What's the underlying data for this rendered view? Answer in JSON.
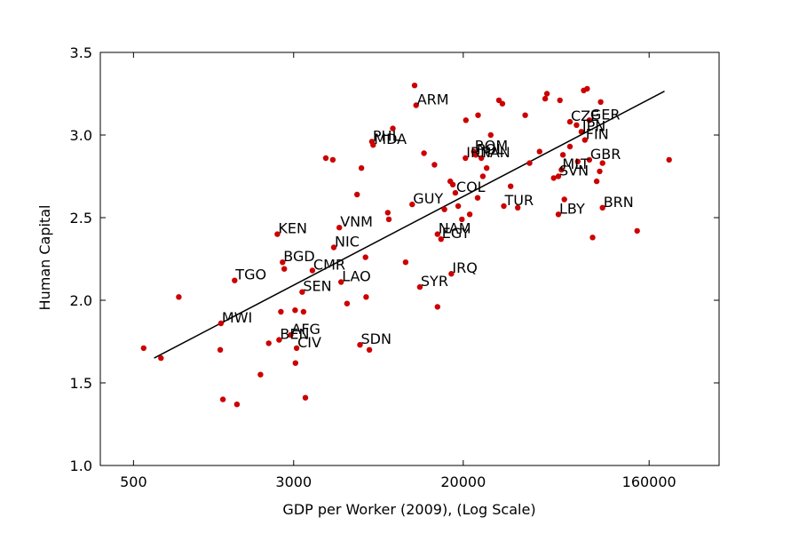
{
  "chart_data": {
    "type": "scatter",
    "title": "",
    "xlabel": "GDP per Worker (2009), (Log Scale)",
    "ylabel": "Human Capital",
    "x_scale": "log",
    "xlim": [
      345,
      350000
    ],
    "ylim": [
      1.0,
      3.5
    ],
    "xticks": [
      500,
      3000,
      20000,
      160000
    ],
    "xtick_labels": [
      "500",
      "3000",
      "20000",
      "160000"
    ],
    "yticks": [
      1.0,
      1.5,
      2.0,
      2.5,
      3.0,
      3.5
    ],
    "ytick_labels": [
      "1.0",
      "1.5",
      "2.0",
      "2.5",
      "3.0",
      "3.5"
    ],
    "grid": false,
    "marker_color": "#cc0000",
    "line_color": "#000000",
    "fit_line": {
      "x": [
        630,
        190000
      ],
      "y": [
        1.65,
        3.265
      ]
    },
    "labeled_points": [
      {
        "label": "ARM",
        "x": 11800,
        "y": 3.18
      },
      {
        "label": "PHL",
        "x": 7200,
        "y": 2.96
      },
      {
        "label": "MDA",
        "x": 7300,
        "y": 2.94
      },
      {
        "label": "CZE",
        "x": 66000,
        "y": 3.08
      },
      {
        "label": "GER",
        "x": 82000,
        "y": 3.09
      },
      {
        "label": "JPN",
        "x": 75000,
        "y": 3.02
      },
      {
        "label": "FIN",
        "x": 78000,
        "y": 2.97
      },
      {
        "label": "ROM",
        "x": 22500,
        "y": 2.9
      },
      {
        "label": "POL",
        "x": 23000,
        "y": 2.88
      },
      {
        "label": "IRN",
        "x": 20500,
        "y": 2.86
      },
      {
        "label": "PAN",
        "x": 24500,
        "y": 2.86
      },
      {
        "label": "GBR",
        "x": 82000,
        "y": 2.85
      },
      {
        "label": "MLT",
        "x": 60000,
        "y": 2.79
      },
      {
        "label": "SVN",
        "x": 58000,
        "y": 2.75
      },
      {
        "label": "GUY",
        "x": 11300,
        "y": 2.58
      },
      {
        "label": "COL",
        "x": 18300,
        "y": 2.65
      },
      {
        "label": "TUR",
        "x": 31500,
        "y": 2.57
      },
      {
        "label": "LBY",
        "x": 58000,
        "y": 2.52
      },
      {
        "label": "BRN",
        "x": 95000,
        "y": 2.56
      },
      {
        "label": "KEN",
        "x": 2500,
        "y": 2.4
      },
      {
        "label": "VNM",
        "x": 5000,
        "y": 2.44
      },
      {
        "label": "NIC",
        "x": 4700,
        "y": 2.32
      },
      {
        "label": "NAM",
        "x": 15000,
        "y": 2.4
      },
      {
        "label": "EGY",
        "x": 15600,
        "y": 2.37
      },
      {
        "label": "BGD",
        "x": 2650,
        "y": 2.23
      },
      {
        "label": "CMR",
        "x": 3700,
        "y": 2.18
      },
      {
        "label": "TGO",
        "x": 1550,
        "y": 2.12
      },
      {
        "label": "LAO",
        "x": 5100,
        "y": 2.11
      },
      {
        "label": "SEN",
        "x": 3300,
        "y": 2.05
      },
      {
        "label": "IRQ",
        "x": 17500,
        "y": 2.16
      },
      {
        "label": "SYR",
        "x": 12300,
        "y": 2.08
      },
      {
        "label": "MWI",
        "x": 1330,
        "y": 1.86
      },
      {
        "label": "AFG",
        "x": 2900,
        "y": 1.79
      },
      {
        "label": "BEN",
        "x": 2550,
        "y": 1.76
      },
      {
        "label": "CIV",
        "x": 3100,
        "y": 1.71
      },
      {
        "label": "SDN",
        "x": 6300,
        "y": 1.73
      }
    ],
    "other_points": [
      {
        "x": 560,
        "y": 1.71
      },
      {
        "x": 680,
        "y": 1.65
      },
      {
        "x": 830,
        "y": 2.02
      },
      {
        "x": 1320,
        "y": 1.7
      },
      {
        "x": 1360,
        "y": 1.4
      },
      {
        "x": 1590,
        "y": 1.37
      },
      {
        "x": 2070,
        "y": 1.55
      },
      {
        "x": 2270,
        "y": 1.74
      },
      {
        "x": 2600,
        "y": 1.93
      },
      {
        "x": 2700,
        "y": 2.19
      },
      {
        "x": 3050,
        "y": 1.94
      },
      {
        "x": 3060,
        "y": 1.62
      },
      {
        "x": 3350,
        "y": 1.93
      },
      {
        "x": 3420,
        "y": 1.41
      },
      {
        "x": 4300,
        "y": 2.86
      },
      {
        "x": 4650,
        "y": 2.85
      },
      {
        "x": 5450,
        "y": 1.98
      },
      {
        "x": 6100,
        "y": 2.64
      },
      {
        "x": 6400,
        "y": 2.8
      },
      {
        "x": 6700,
        "y": 2.26
      },
      {
        "x": 6750,
        "y": 2.02
      },
      {
        "x": 7000,
        "y": 1.7
      },
      {
        "x": 8600,
        "y": 2.53
      },
      {
        "x": 8700,
        "y": 2.49
      },
      {
        "x": 9100,
        "y": 3.04
      },
      {
        "x": 10500,
        "y": 2.23
      },
      {
        "x": 11600,
        "y": 3.3
      },
      {
        "x": 12900,
        "y": 2.89
      },
      {
        "x": 14500,
        "y": 2.82
      },
      {
        "x": 15000,
        "y": 1.96
      },
      {
        "x": 16200,
        "y": 2.55
      },
      {
        "x": 17300,
        "y": 2.72
      },
      {
        "x": 18900,
        "y": 2.57
      },
      {
        "x": 19700,
        "y": 2.49
      },
      {
        "x": 20600,
        "y": 3.09
      },
      {
        "x": 21500,
        "y": 2.52
      },
      {
        "x": 23600,
        "y": 3.12
      },
      {
        "x": 24900,
        "y": 2.75
      },
      {
        "x": 26000,
        "y": 2.8
      },
      {
        "x": 27200,
        "y": 3.0
      },
      {
        "x": 29800,
        "y": 3.21
      },
      {
        "x": 31000,
        "y": 3.19
      },
      {
        "x": 34000,
        "y": 2.69
      },
      {
        "x": 36800,
        "y": 2.56
      },
      {
        "x": 40000,
        "y": 3.12
      },
      {
        "x": 42000,
        "y": 2.83
      },
      {
        "x": 47000,
        "y": 2.9
      },
      {
        "x": 50000,
        "y": 3.22
      },
      {
        "x": 51000,
        "y": 3.25
      },
      {
        "x": 55000,
        "y": 2.74
      },
      {
        "x": 59000,
        "y": 3.21
      },
      {
        "x": 62000,
        "y": 2.61
      },
      {
        "x": 66000,
        "y": 2.93
      },
      {
        "x": 72000,
        "y": 2.84
      },
      {
        "x": 77000,
        "y": 3.27
      },
      {
        "x": 80000,
        "y": 3.28
      },
      {
        "x": 85000,
        "y": 2.38
      },
      {
        "x": 89000,
        "y": 2.72
      },
      {
        "x": 93000,
        "y": 3.2
      },
      {
        "x": 95000,
        "y": 2.83
      },
      {
        "x": 92000,
        "y": 2.78
      },
      {
        "x": 140000,
        "y": 2.42
      },
      {
        "x": 200000,
        "y": 2.85
      },
      {
        "x": 71000,
        "y": 3.06
      },
      {
        "x": 61000,
        "y": 2.88
      },
      {
        "x": 23500,
        "y": 2.62
      },
      {
        "x": 17800,
        "y": 2.7
      }
    ]
  }
}
